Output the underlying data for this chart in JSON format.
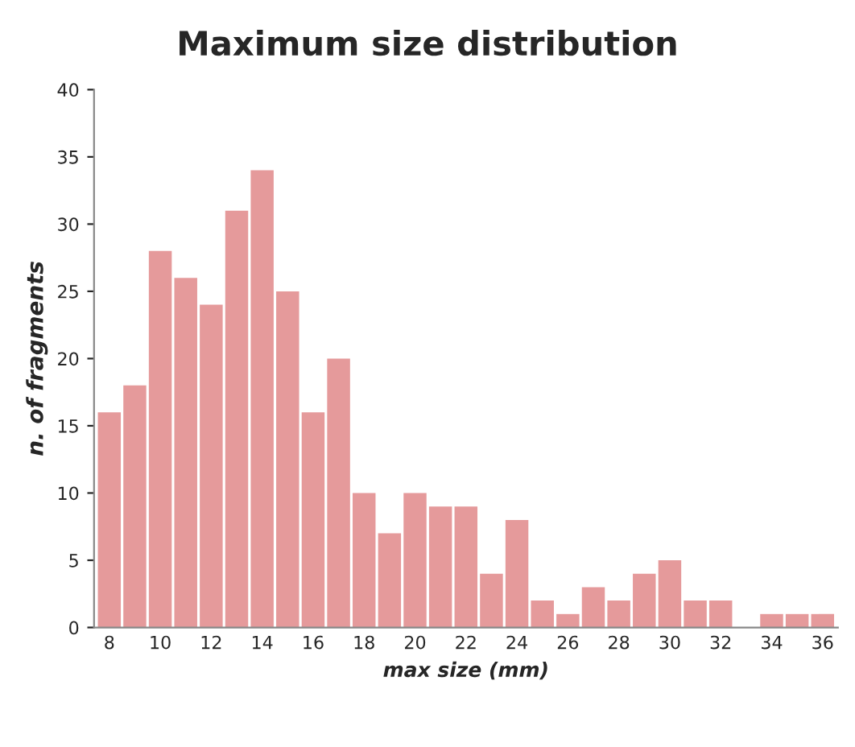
{
  "chart_data": {
    "type": "bar",
    "title": "Maximum size distribution",
    "xlabel": "max size (mm)",
    "ylabel": "n. of fragments",
    "categories": [
      "8",
      null,
      "10",
      null,
      "12",
      null,
      "14",
      null,
      "16",
      null,
      "18",
      null,
      "20",
      null,
      "22",
      null,
      "24",
      null,
      "26",
      null,
      "28",
      null,
      "30",
      null,
      "32",
      null,
      "34",
      null,
      "36"
    ],
    "values": [
      16,
      18,
      28,
      26,
      24,
      31,
      34,
      25,
      16,
      20,
      10,
      7,
      10,
      9,
      9,
      4,
      8,
      2,
      1,
      3,
      2,
      4,
      5,
      2,
      2,
      0,
      1,
      1,
      1
    ],
    "color": "#e59a9b",
    "ylim": [
      0,
      40
    ],
    "yticks": [
      0,
      5,
      10,
      15,
      20,
      25,
      30,
      35,
      40
    ],
    "grid": false,
    "legend": false
  }
}
